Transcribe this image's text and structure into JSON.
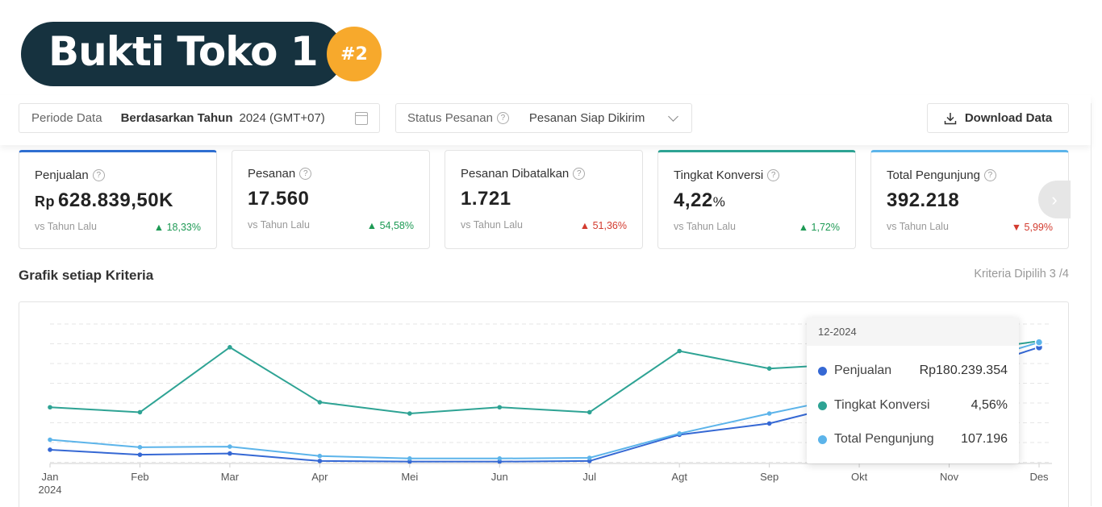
{
  "header": {
    "title": "Bukti Toko 1",
    "badge": "#2"
  },
  "filters": {
    "period_label": "Periode Data",
    "period_value": "Berdasarkan Tahun",
    "period_year": "2024 (GMT+07)",
    "status_label": "Status Pesanan",
    "status_value": "Pesanan Siap Dikirim",
    "download_label": "Download Data"
  },
  "cards": [
    {
      "label": "Penjualan",
      "prefix": "Rp",
      "value": "628.839,50K",
      "suffix": "",
      "vs": "vs Tahun Lalu",
      "change": "18,33%",
      "dir": "up",
      "arrow": "▲",
      "accent": "#2f6fd1"
    },
    {
      "label": "Pesanan",
      "prefix": "",
      "value": "17.560",
      "suffix": "",
      "vs": "vs Tahun Lalu",
      "change": "54,58%",
      "dir": "up",
      "arrow": "▲"
    },
    {
      "label": "Pesanan Dibatalkan",
      "prefix": "",
      "value": "1.721",
      "suffix": "",
      "vs": "vs Tahun Lalu",
      "change": "51,36%",
      "dir": "down",
      "arrow": "▲"
    },
    {
      "label": "Tingkat Konversi",
      "prefix": "",
      "value": "4,22",
      "suffix": "%",
      "vs": "vs Tahun Lalu",
      "change": "1,72%",
      "dir": "up",
      "arrow": "▲",
      "accent": "#2ea394"
    },
    {
      "label": "Total Pengunjung",
      "prefix": "",
      "value": "392.218",
      "suffix": "",
      "vs": "vs Tahun Lalu",
      "change": "5,99%",
      "dir": "down",
      "arrow": "▼",
      "accent": "#5cb4ea"
    }
  ],
  "section": {
    "title": "Grafik setiap Kriteria",
    "criteria": "Kriteria Dipilih 3 /4"
  },
  "chart_data": {
    "type": "line",
    "x": [
      "Jan",
      "Feb",
      "Mar",
      "Apr",
      "Mei",
      "Jun",
      "Jul",
      "Agt",
      "Sep",
      "Okt",
      "Nov",
      "Des"
    ],
    "x_sublabel": "2024",
    "grid": true,
    "y_axis_labels": false,
    "series": [
      {
        "name": "Penjualan",
        "color": "#3568d4",
        "values": [
          0.11,
          0.07,
          0.08,
          0.02,
          0.015,
          0.015,
          0.02,
          0.23,
          0.32,
          0.5,
          0.7,
          0.93
        ]
      },
      {
        "name": "Tingkat Konversi",
        "color": "#2ea394",
        "values": [
          0.45,
          0.41,
          0.93,
          0.49,
          0.4,
          0.45,
          0.41,
          0.9,
          0.76,
          0.8,
          0.88,
          0.98
        ]
      },
      {
        "name": "Total Pengunjung",
        "color": "#5cb4ea",
        "values": [
          0.19,
          0.13,
          0.135,
          0.06,
          0.04,
          0.04,
          0.045,
          0.24,
          0.4,
          0.55,
          0.75,
          0.97
        ]
      }
    ]
  },
  "tooltip": {
    "period": "12-2024",
    "rows": [
      {
        "name": "Penjualan",
        "value": "Rp180.239.354",
        "color": "#3568d4"
      },
      {
        "name": "Tingkat Konversi",
        "value": "4,56%",
        "color": "#2ea394"
      },
      {
        "name": "Total Pengunjung",
        "value": "107.196",
        "color": "#5cb4ea"
      }
    ]
  }
}
